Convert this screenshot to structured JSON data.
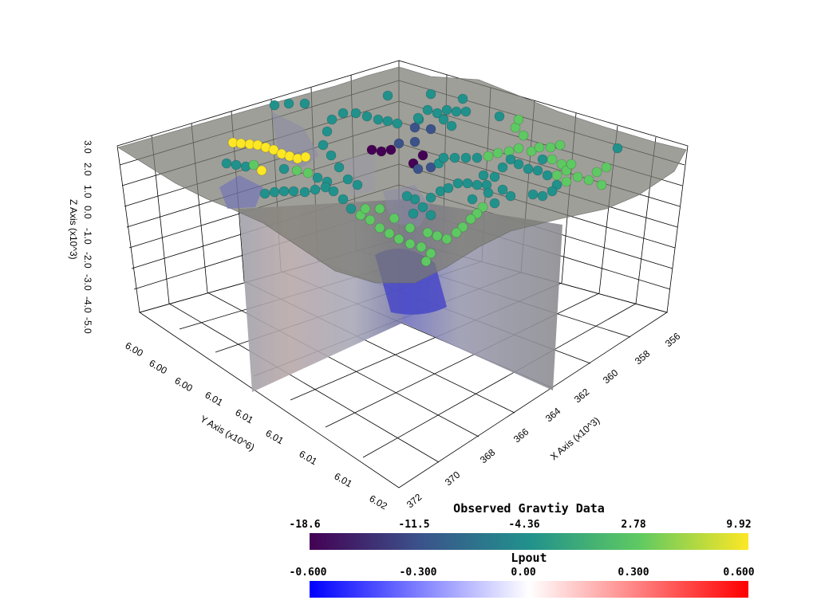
{
  "axes": {
    "z_title": "Z Axis (x10^3)",
    "y_title": "Y Axis (x10^6)",
    "x_title": "X Axis (x10^3)",
    "z_ticks": [
      "3.0",
      "2.0",
      "1.0",
      "0.0",
      "-1.0",
      "-2.0",
      "-3.0",
      "-4.0",
      "-5.0"
    ],
    "y_ticks": [
      "6.00",
      "6.00",
      "6.00",
      "6.01",
      "6.01",
      "6.01",
      "6.01",
      "6.01",
      "6.02"
    ],
    "x_ticks": [
      "356",
      "358",
      "360",
      "362",
      "364",
      "366",
      "368",
      "370",
      "372"
    ]
  },
  "colorbars": [
    {
      "title": "Observed Gravtiy Data",
      "ticks": [
        "-18.6",
        "-11.5",
        "-4.36",
        "2.78",
        "9.92"
      ],
      "colormap": [
        "#440154",
        "#3b528b",
        "#21918c",
        "#5ec962",
        "#fde725"
      ]
    },
    {
      "title": "Lpout",
      "ticks": [
        "-0.600",
        "-0.300",
        "0.00",
        "0.300",
        "0.600"
      ],
      "colormap": [
        "#0000ff",
        "#ffffff",
        "#ff0000"
      ]
    }
  ],
  "colors": {
    "terrain": "#7a7a72",
    "slice": "#9a9aa4",
    "anomaly": "#4a4ad0"
  }
}
